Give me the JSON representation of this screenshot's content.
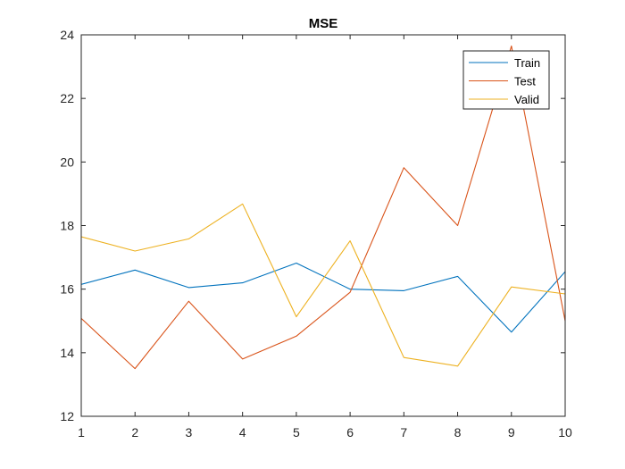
{
  "chart_data": {
    "type": "line",
    "title": "MSE",
    "xlabel": "",
    "ylabel": "",
    "x": [
      1,
      2,
      3,
      4,
      5,
      6,
      7,
      8,
      9,
      10
    ],
    "xlim": [
      1,
      10
    ],
    "ylim": [
      12,
      24
    ],
    "xticks": [
      1,
      2,
      3,
      4,
      5,
      6,
      7,
      8,
      9,
      10
    ],
    "yticks": [
      12,
      14,
      16,
      18,
      20,
      22,
      24
    ],
    "grid": false,
    "legend_position": "top-right",
    "series": [
      {
        "name": "Train",
        "color": "#0072BD",
        "values": [
          16.15,
          16.6,
          16.05,
          16.2,
          16.82,
          16.0,
          15.95,
          16.4,
          14.65,
          16.55
        ]
      },
      {
        "name": "Test",
        "color": "#D95319",
        "values": [
          15.08,
          13.5,
          15.62,
          13.8,
          14.52,
          15.9,
          19.82,
          18.0,
          23.65,
          15.0
        ]
      },
      {
        "name": "Valid",
        "color": "#EDB120",
        "values": [
          17.65,
          17.2,
          17.58,
          18.68,
          15.13,
          17.52,
          13.85,
          13.58,
          16.07,
          15.85
        ]
      }
    ]
  }
}
